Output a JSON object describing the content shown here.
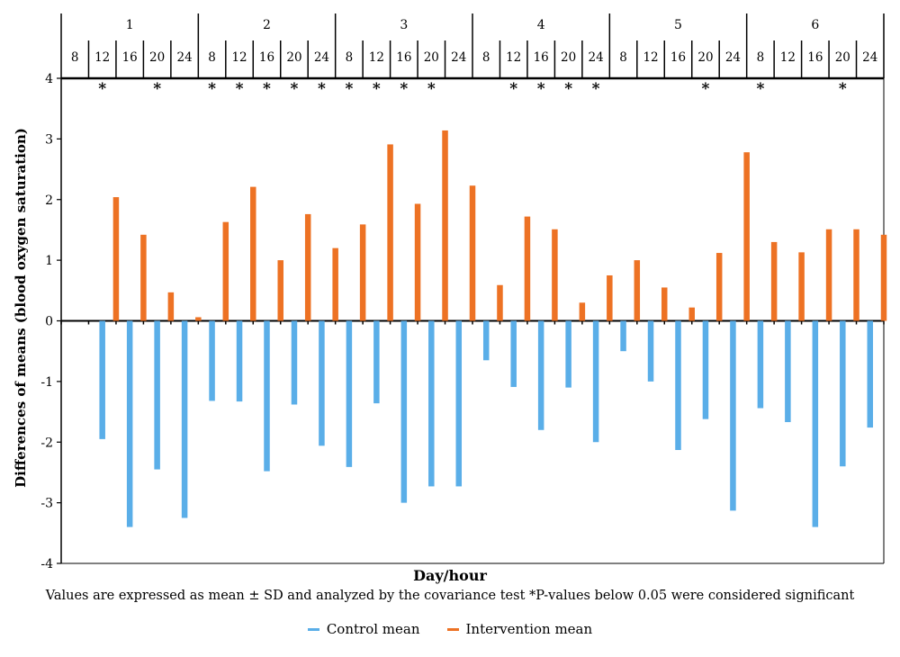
{
  "chart_data": {
    "type": "bar",
    "ylabel": "Differences of means (blood oxygen saturation)",
    "xlabel": "Day/hour",
    "ylim": [
      -4,
      4
    ],
    "yticks": [
      "4",
      "3",
      "2",
      "1",
      "0",
      "-1",
      "-2",
      "-3",
      "-4"
    ],
    "ytick_values": [
      4,
      3,
      2,
      1,
      0,
      -1,
      -2,
      -3,
      -4
    ],
    "days": [
      "1",
      "2",
      "3",
      "4",
      "5",
      "6"
    ],
    "hours": [
      "8",
      "12",
      "16",
      "20",
      "24"
    ],
    "categories": [
      "1/8",
      "1/12",
      "1/16",
      "1/20",
      "1/24",
      "2/8",
      "2/12",
      "2/16",
      "2/20",
      "2/24",
      "3/8",
      "3/12",
      "3/16",
      "3/20",
      "3/24",
      "4/8",
      "4/12",
      "4/16",
      "4/20",
      "4/24",
      "5/8",
      "5/12",
      "5/16",
      "5/20",
      "5/24",
      "6/8",
      "6/12",
      "6/16",
      "6/20",
      "6/24"
    ],
    "series": [
      {
        "name": "Control mean",
        "color": "#5aaee8",
        "values": [
          null,
          -1.95,
          -3.4,
          -2.45,
          -3.25,
          -1.32,
          -1.33,
          -2.48,
          -1.38,
          -2.06,
          -2.41,
          -1.36,
          -3.0,
          -2.73,
          -2.73,
          -0.65,
          -1.09,
          -1.8,
          -1.1,
          -2.0,
          -0.5,
          -1.0,
          -2.13,
          -1.62,
          -3.13,
          -1.44,
          -1.67,
          -3.4,
          -2.4,
          -1.76
        ]
      },
      {
        "name": "Intervention mean",
        "color": "#ed7224",
        "values": [
          null,
          2.04,
          1.42,
          0.47,
          0.06,
          1.63,
          2.21,
          1.0,
          1.76,
          1.2,
          1.59,
          2.91,
          1.93,
          3.14,
          2.23,
          0.59,
          1.72,
          1.51,
          0.3,
          0.75,
          1.0,
          0.55,
          0.22,
          1.12,
          2.78,
          1.3,
          1.13,
          1.51,
          1.51,
          1.42
        ]
      }
    ],
    "significant": [
      false,
      true,
      false,
      true,
      false,
      true,
      true,
      true,
      true,
      true,
      true,
      true,
      true,
      true,
      false,
      false,
      true,
      true,
      true,
      true,
      false,
      false,
      false,
      true,
      false,
      true,
      false,
      false,
      true,
      false
    ],
    "significance_marker": "*",
    "legend_position": "bottom-center",
    "grid": false
  },
  "note": "Values are expressed as mean ± SD and analyzed by the covariance test *P-values below 0.05 were considered significant"
}
